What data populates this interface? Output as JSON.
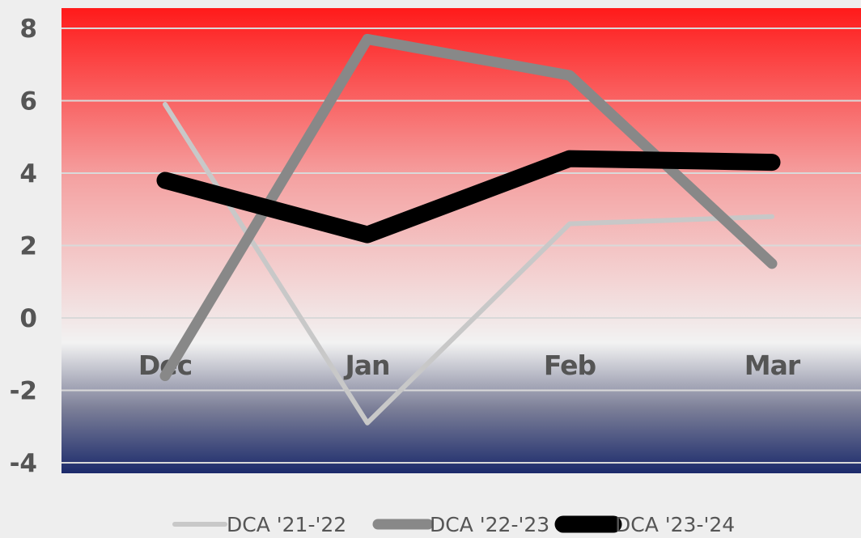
{
  "chart_data": {
    "type": "line",
    "categories": [
      "Dec",
      "Jan",
      "Feb",
      "Mar"
    ],
    "ylim": [
      -4,
      8
    ],
    "yticks": [
      8,
      6,
      4,
      2,
      0,
      -2,
      -4
    ],
    "ytick_labels": [
      "8",
      "6",
      "4",
      "2",
      "0",
      "-2",
      "-4"
    ],
    "grid": true,
    "legend_position": "bottom",
    "background_gradient": [
      "#ff1a1a",
      "#f2f2f2",
      "#1b2a6b"
    ],
    "series": [
      {
        "name": "DCA '21-'22",
        "values": [
          5.9,
          -2.9,
          2.6,
          2.8
        ],
        "color": "#c8c8c8"
      },
      {
        "name": "DCA '22-'23",
        "values": [
          -1.6,
          7.7,
          6.7,
          1.5
        ],
        "color": "#888888"
      },
      {
        "name": "DCA '23-'24",
        "values": [
          3.8,
          2.3,
          4.4,
          4.3
        ],
        "color": "#000000"
      }
    ]
  }
}
